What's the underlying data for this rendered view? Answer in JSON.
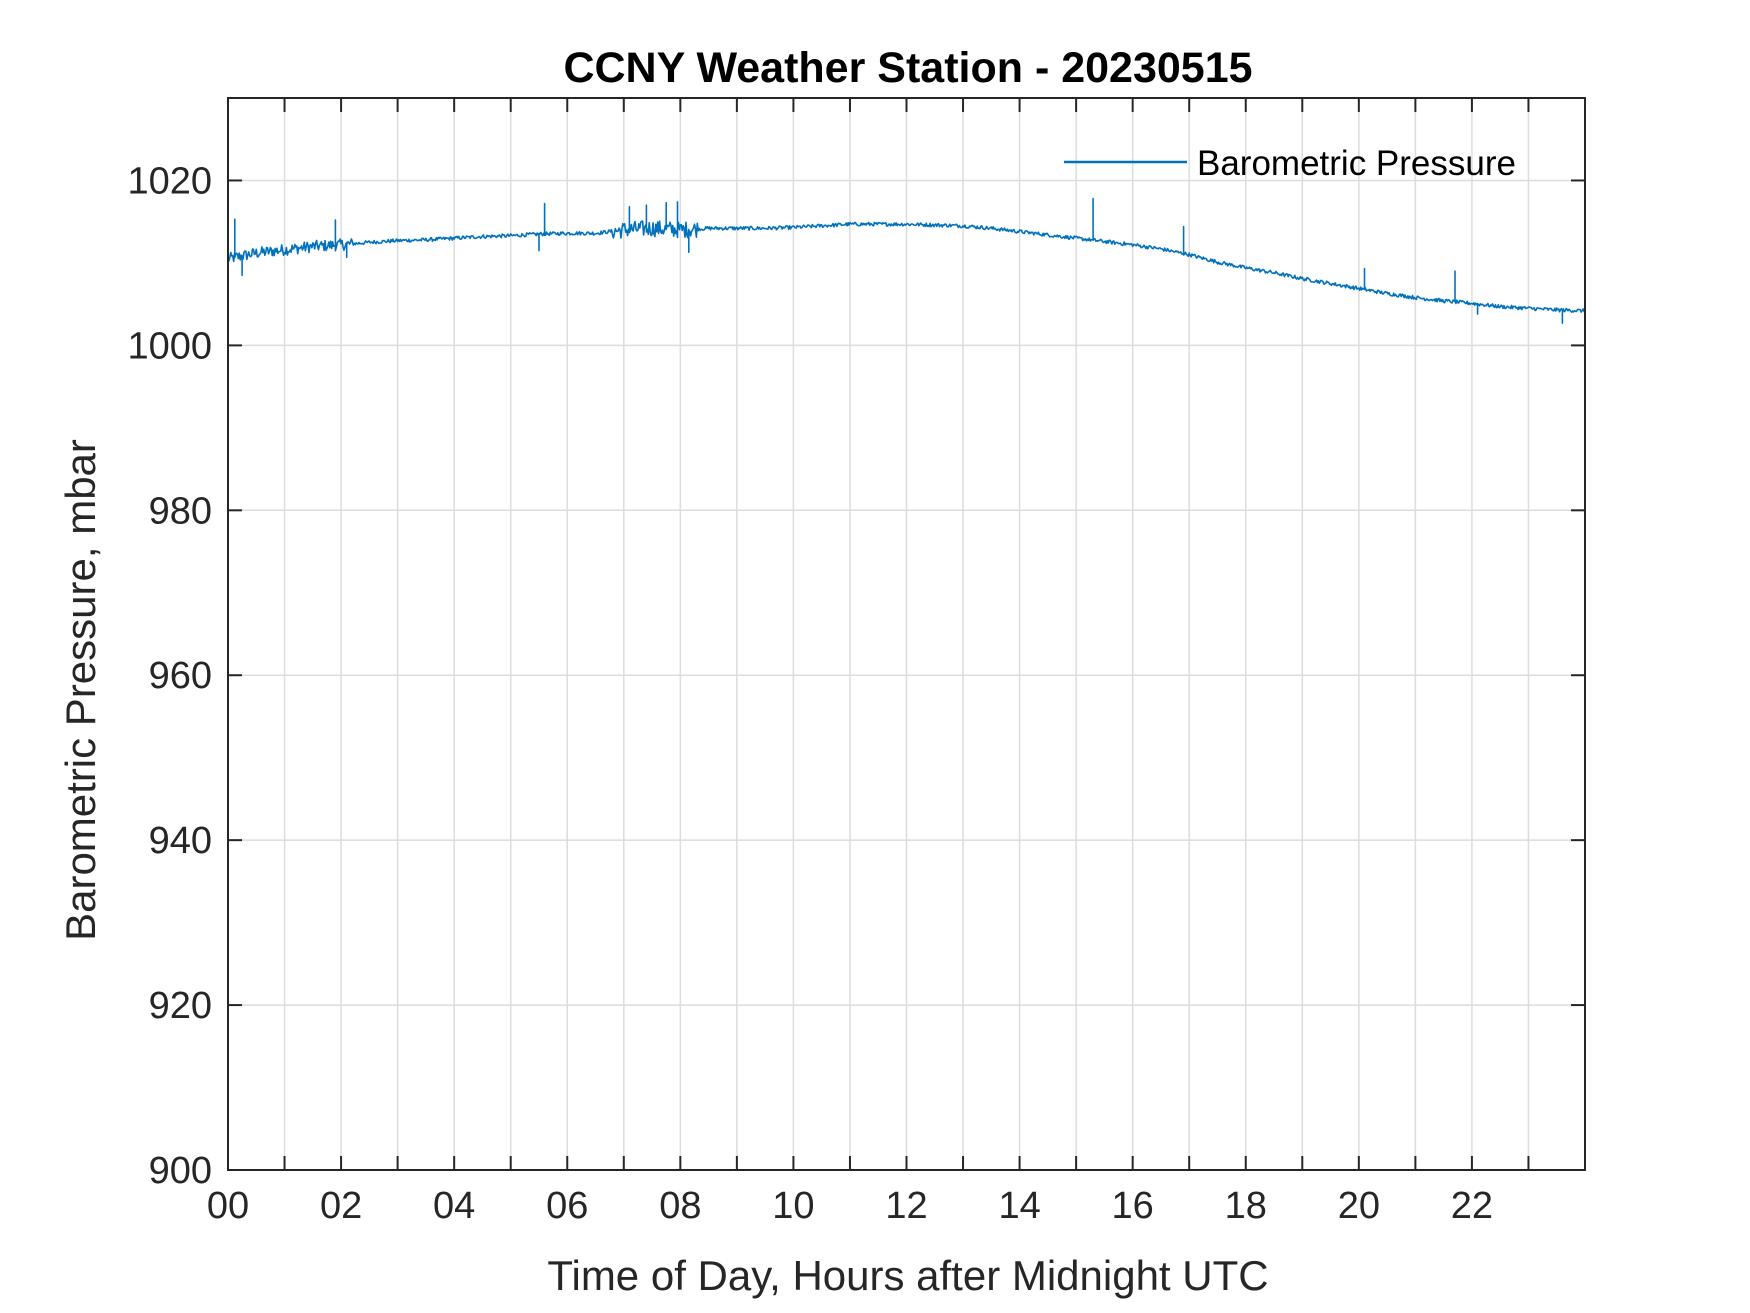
{
  "colors": {
    "series": "#0072BD",
    "grid": "#DCDCDC",
    "axis": "#262626"
  },
  "chart_data": {
    "type": "line",
    "title": "CCNY Weather Station - 20230515",
    "xlabel": "Time of Day, Hours after Midnight UTC",
    "ylabel": "Barometric Pressure, mbar",
    "xlim": [
      0,
      24
    ],
    "ylim": [
      900,
      1030
    ],
    "xticks": [
      0,
      2,
      4,
      6,
      8,
      10,
      12,
      14,
      16,
      18,
      20,
      22
    ],
    "xtick_labels": [
      "00",
      "02",
      "04",
      "06",
      "08",
      "10",
      "12",
      "14",
      "16",
      "18",
      "20",
      "22"
    ],
    "x_minor_grid": [
      1,
      3,
      5,
      7,
      9,
      11,
      13,
      15,
      17,
      19,
      21,
      23
    ],
    "yticks": [
      900,
      920,
      940,
      960,
      980,
      1000,
      1020
    ],
    "ytick_labels": [
      "900",
      "920",
      "940",
      "960",
      "980",
      "1000",
      "1020"
    ],
    "grid": true,
    "legend": {
      "location": "top-right",
      "entries": [
        "Barometric Pressure"
      ]
    },
    "series": [
      {
        "name": "Barometric Pressure",
        "x": [
          0,
          0.5,
          1,
          1.5,
          2,
          2.5,
          3,
          3.5,
          4,
          4.5,
          5,
          5.5,
          6,
          6.5,
          7,
          7.5,
          8,
          8.5,
          9,
          9.5,
          10,
          10.5,
          11,
          11.5,
          12,
          12.5,
          13,
          13.5,
          14,
          14.5,
          15,
          15.5,
          16,
          16.5,
          17,
          17.5,
          18,
          18.5,
          19,
          19.5,
          20,
          20.5,
          21,
          21.5,
          22,
          22.5,
          23,
          23.5,
          24
        ],
        "values": [
          1010.5,
          1011.2,
          1011.6,
          1012.0,
          1012.2,
          1012.5,
          1012.7,
          1012.8,
          1013.0,
          1013.2,
          1013.3,
          1013.5,
          1013.6,
          1013.6,
          1014.0,
          1014.2,
          1014.0,
          1014.2,
          1014.2,
          1014.2,
          1014.3,
          1014.5,
          1014.7,
          1014.7,
          1014.7,
          1014.6,
          1014.5,
          1014.2,
          1013.8,
          1013.4,
          1013.0,
          1012.6,
          1012.2,
          1011.7,
          1011.0,
          1010.1,
          1009.4,
          1008.8,
          1008.1,
          1007.5,
          1006.9,
          1006.3,
          1005.8,
          1005.4,
          1005.1,
          1004.7,
          1004.5,
          1004.3,
          1004.2
        ],
        "spikes": [
          {
            "x": 0.12,
            "y": 1015.3
          },
          {
            "x": 0.25,
            "y": 1008.5
          },
          {
            "x": 1.9,
            "y": 1015.2
          },
          {
            "x": 2.1,
            "y": 1010.7
          },
          {
            "x": 5.6,
            "y": 1017.2
          },
          {
            "x": 5.5,
            "y": 1011.5
          },
          {
            "x": 7.1,
            "y": 1016.8
          },
          {
            "x": 7.4,
            "y": 1017.0
          },
          {
            "x": 7.75,
            "y": 1017.3
          },
          {
            "x": 7.95,
            "y": 1017.4
          },
          {
            "x": 8.15,
            "y": 1011.3
          },
          {
            "x": 15.3,
            "y": 1017.8
          },
          {
            "x": 16.9,
            "y": 1014.4
          },
          {
            "x": 20.1,
            "y": 1009.3
          },
          {
            "x": 21.7,
            "y": 1009.0
          },
          {
            "x": 22.1,
            "y": 1003.8
          },
          {
            "x": 23.6,
            "y": 1002.7
          }
        ]
      }
    ]
  }
}
